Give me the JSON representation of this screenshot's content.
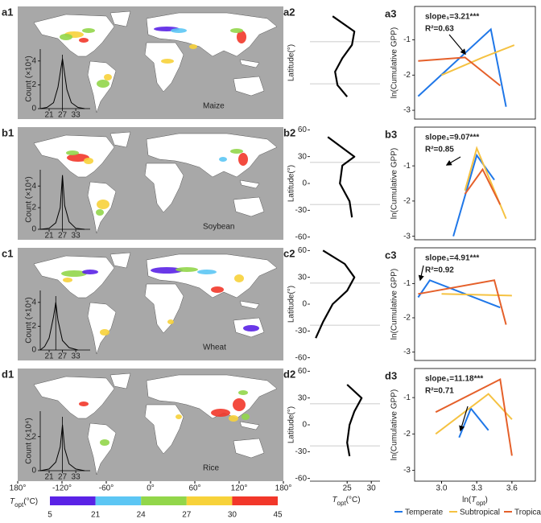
{
  "chart_data": [
    {
      "type": "map",
      "panel_label": "a1",
      "crop": "Maize",
      "xlim": [
        -180,
        180
      ],
      "inset": {
        "type": "line",
        "ylabel": "Count (×10⁴)",
        "x": [
          17,
          20,
          23,
          25,
          27,
          29,
          31,
          34,
          37
        ],
        "values": [
          0,
          0.1,
          0.5,
          1.8,
          4.2,
          1.6,
          0.5,
          0.1,
          0
        ],
        "xlim": [
          17,
          39.5
        ],
        "ylim": [
          0,
          5
        ],
        "xticks": [
          21,
          27,
          33
        ],
        "yticks": [
          0,
          2,
          4
        ],
        "vline": 27,
        "color": "#000000"
      }
    },
    {
      "type": "line",
      "panel_label": "a2",
      "ylabel": "Latitude(°)",
      "x": [
        22,
        26.5,
        26,
        24,
        22.5,
        23,
        25
      ],
      "values": [
        52,
        35,
        20,
        5,
        -10,
        -25,
        -38
      ],
      "xlim": [
        17.3,
        31.8
      ],
      "ylim": [
        -63,
        63
      ],
      "hlines": [
        23.5,
        -23.5
      ],
      "color": "#000000"
    },
    {
      "type": "line",
      "panel_label": "a3",
      "ylabel": "ln(Cumulative GPP)",
      "slope_text": "slope₁=3.21***",
      "r2_text": "R²=0.63",
      "xlim": [
        2.77,
        3.8
      ],
      "ylim": [
        -3.25,
        -0.05
      ],
      "yticks": [
        -1,
        -2,
        -3
      ],
      "series": [
        {
          "name": "Temperate",
          "color": "#1f77e8",
          "x": [
            2.8,
            3.42,
            3.55
          ],
          "values": [
            -2.6,
            -0.7,
            -2.9
          ]
        },
        {
          "name": "Subtropical",
          "color": "#f5c242",
          "x": [
            3.0,
            3.35,
            3.62
          ],
          "values": [
            -2.0,
            -1.5,
            -1.15
          ]
        },
        {
          "name": "Tropical",
          "color": "#e5602a",
          "x": [
            2.8,
            3.2,
            3.5
          ],
          "values": [
            -1.6,
            -1.5,
            -2.3
          ]
        }
      ]
    },
    {
      "type": "map",
      "panel_label": "b1",
      "crop": "Soybean",
      "xlim": [
        -180,
        180
      ],
      "inset": {
        "type": "line",
        "ylabel": "Count (×10⁴)",
        "x": [
          17,
          21,
          24,
          26,
          27,
          28,
          30,
          33,
          37
        ],
        "values": [
          0,
          0.1,
          0.6,
          2.0,
          5.0,
          2.2,
          0.7,
          0.1,
          0
        ],
        "xlim": [
          17,
          39.5
        ],
        "ylim": [
          0,
          5.5
        ],
        "xticks": [
          21,
          27,
          33
        ],
        "yticks": [
          0,
          2,
          4
        ],
        "vline": 27,
        "color": "#000000"
      }
    },
    {
      "type": "line",
      "panel_label": "b2",
      "ylabel": "Latitude(°)",
      "x": [
        21,
        24,
        26.5,
        24,
        23.5,
        25.5,
        26
      ],
      "values": [
        52,
        40,
        30,
        20,
        0,
        -20,
        -38
      ],
      "xlim": [
        17.3,
        31.8
      ],
      "ylim": [
        -63,
        63
      ],
      "yticks": [
        -60,
        -30,
        0,
        30,
        60
      ],
      "hlines": [
        23.5,
        -23.5
      ],
      "color": "#000000"
    },
    {
      "type": "line",
      "panel_label": "b3",
      "ylabel": "ln(Cumulative GPP)",
      "slope_text": "slope₁=9.07***",
      "r2_text": "R²=0.85",
      "xlim": [
        2.77,
        3.8
      ],
      "ylim": [
        -3.1,
        0.1
      ],
      "yticks": [
        -1,
        -2,
        -3
      ],
      "series": [
        {
          "name": "Temperate",
          "color": "#1f77e8",
          "x": [
            3.1,
            3.3,
            3.45
          ],
          "values": [
            -3.0,
            -0.7,
            -1.4
          ]
        },
        {
          "name": "Subtropical",
          "color": "#f5c242",
          "x": [
            3.2,
            3.3,
            3.55
          ],
          "values": [
            -1.7,
            -0.5,
            -2.5
          ]
        },
        {
          "name": "Tropical",
          "color": "#e5602a",
          "x": [
            3.2,
            3.35,
            3.5
          ],
          "values": [
            -1.8,
            -1.1,
            -2.1
          ]
        }
      ]
    },
    {
      "type": "map",
      "panel_label": "c1",
      "crop": "Wheat",
      "xlim": [
        -180,
        180
      ],
      "inset": {
        "type": "line",
        "ylabel": "Count (×10⁴)",
        "x": [
          17,
          19,
          21,
          23,
          24,
          25,
          27,
          30,
          34
        ],
        "values": [
          0,
          0.3,
          1.0,
          2.8,
          4.0,
          2.5,
          0.8,
          0.2,
          0
        ],
        "xlim": [
          17,
          39.5
        ],
        "ylim": [
          0,
          5
        ],
        "xticks": [
          21,
          27,
          33
        ],
        "yticks": [
          0,
          2,
          4
        ],
        "vline": 24,
        "color": "#000000"
      }
    },
    {
      "type": "line",
      "panel_label": "c2",
      "ylabel": "Latitude(°)",
      "x": [
        20,
        24.5,
        26.5,
        25,
        22,
        20,
        18.5
      ],
      "values": [
        60,
        45,
        30,
        15,
        0,
        -20,
        -38
      ],
      "xlim": [
        17.3,
        31.8
      ],
      "ylim": [
        -63,
        63
      ],
      "yticks": [
        -60,
        -30,
        0,
        30,
        60
      ],
      "hlines": [
        23.5,
        -23.5
      ],
      "color": "#000000"
    },
    {
      "type": "line",
      "panel_label": "c3",
      "ylabel": "ln(Cumulative GPP)",
      "slope_text": "slope₁=4.91***",
      "r2_text": "R²=0.92",
      "xlim": [
        2.77,
        3.8
      ],
      "ylim": [
        -3.25,
        0.05
      ],
      "yticks": [
        -1,
        -2,
        -3
      ],
      "series": [
        {
          "name": "Temperate",
          "color": "#1f77e8",
          "x": [
            2.8,
            2.9,
            3.5
          ],
          "values": [
            -1.4,
            -0.9,
            -1.7
          ]
        },
        {
          "name": "Subtropical",
          "color": "#f5c242",
          "x": [
            3.0,
            3.6
          ],
          "values": [
            -1.3,
            -1.35
          ]
        },
        {
          "name": "Tropical",
          "color": "#e5602a",
          "x": [
            2.8,
            3.45,
            3.55
          ],
          "values": [
            -1.3,
            -0.9,
            -2.2
          ]
        }
      ]
    },
    {
      "type": "map",
      "panel_label": "d1",
      "crop": "Rice",
      "xlim": [
        -180,
        180
      ],
      "xticks": [
        {
          "value": -180,
          "label": "180°"
        },
        {
          "value": -120,
          "label": "-120°"
        },
        {
          "value": -60,
          "label": "-60°"
        },
        {
          "value": 0,
          "label": "0°"
        },
        {
          "value": 60,
          "label": "60°"
        },
        {
          "value": 120,
          "label": "120°"
        },
        {
          "value": 180,
          "label": "180°"
        }
      ],
      "colorbar": {
        "label": {
          "main": "T",
          "sub": "opt",
          "post": "(°C)"
        },
        "bounds": [
          5,
          21,
          24,
          27,
          30,
          45
        ],
        "colors": [
          "#5a22e6",
          "#5cc6f4",
          "#92d64a",
          "#f7d23a",
          "#f2372a"
        ]
      },
      "inset": {
        "type": "line",
        "ylabel": "Count (×10⁴)",
        "x": [
          17,
          21,
          24,
          26,
          27,
          28,
          30,
          33,
          37
        ],
        "values": [
          0,
          0.1,
          0.5,
          1.4,
          2.7,
          1.3,
          0.4,
          0.1,
          0
        ],
        "xlim": [
          17,
          39.5
        ],
        "ylim": [
          0,
          3.5
        ],
        "xticks": [
          21,
          27,
          33
        ],
        "yticks": [
          0,
          2
        ],
        "vline": 27,
        "color": "#000000"
      }
    },
    {
      "type": "line",
      "panel_label": "d2",
      "ylabel": "Latitude(°)",
      "x": [
        25,
        28,
        26.5,
        25.5,
        25,
        25.5
      ],
      "values": [
        45,
        30,
        15,
        0,
        -20,
        -35
      ],
      "xlim": [
        17.3,
        31.8
      ],
      "ylim": [
        -63,
        63
      ],
      "yticks": [
        -60,
        -30,
        0,
        30,
        60
      ],
      "xticks": [
        25,
        30
      ],
      "xlabel": {
        "main": "T",
        "sub": "opt",
        "post": "(°C)"
      },
      "hlines": [
        23.5,
        -23.5
      ],
      "color": "#000000"
    },
    {
      "type": "line",
      "panel_label": "d3",
      "ylabel": "ln(Cumulative GPP)",
      "slope_text": "slope₁=11.18***",
      "r2_text": "R²=0.71",
      "xlim": [
        2.77,
        3.8
      ],
      "ylim": [
        -3.3,
        -0.2
      ],
      "yticks": [
        -1,
        -2,
        -3
      ],
      "xticks": [
        {
          "value": 3.0,
          "label": "3.0"
        },
        3.3,
        3.6
      ],
      "xlabel": {
        "pre": "ln(",
        "main": "T",
        "sub": "opt",
        "post": ")"
      },
      "series": [
        {
          "name": "Temperate",
          "color": "#1f77e8",
          "x": [
            3.15,
            3.25,
            3.4
          ],
          "values": [
            -2.1,
            -1.3,
            -1.9
          ]
        },
        {
          "name": "Subtropical",
          "color": "#f5c242",
          "x": [
            2.95,
            3.4,
            3.6
          ],
          "values": [
            -2.0,
            -0.9,
            -1.6
          ]
        },
        {
          "name": "Tropical",
          "color": "#e5602a",
          "x": [
            2.95,
            3.5,
            3.6
          ],
          "values": [
            -1.4,
            -0.5,
            -2.6
          ]
        }
      ]
    }
  ]
}
